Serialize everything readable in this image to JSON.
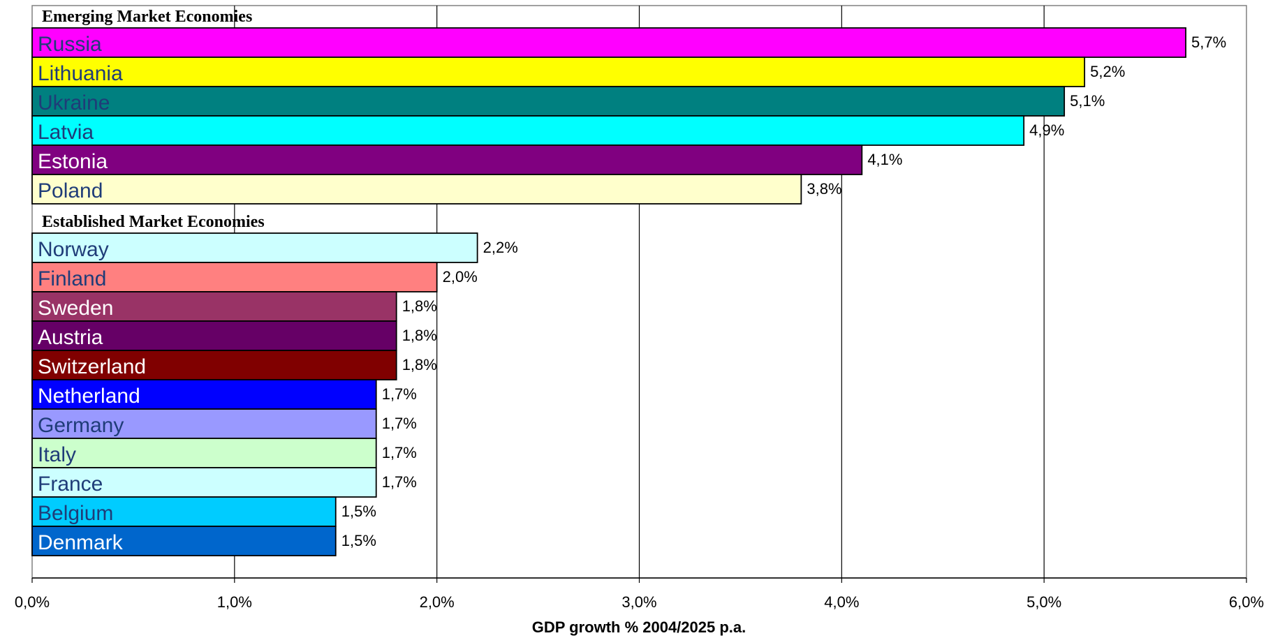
{
  "chart_data": {
    "type": "bar",
    "orientation": "horizontal",
    "xlabel": "GDP growth % 2004/2025 p.a.",
    "xlim": [
      0,
      6
    ],
    "xticks": [
      "0,0%",
      "1,0%",
      "2,0%",
      "3,0%",
      "4,0%",
      "5,0%",
      "6,0%"
    ],
    "grid": "vertical",
    "groups": [
      {
        "label": "Emerging Market Economies",
        "bars": [
          {
            "name": "Russia",
            "value": 5.7,
            "value_label": "5,7%",
            "color": "#ff00ff",
            "text_color": "#1f3c78"
          },
          {
            "name": "Lithuania",
            "value": 5.2,
            "value_label": "5,2%",
            "color": "#ffff00",
            "text_color": "#1f3c78"
          },
          {
            "name": "Ukraine",
            "value": 5.1,
            "value_label": "5,1%",
            "color": "#008080",
            "text_color": "#1f3c78"
          },
          {
            "name": "Latvia",
            "value": 4.9,
            "value_label": "4,9%",
            "color": "#00ffff",
            "text_color": "#1f3c78"
          },
          {
            "name": "Estonia",
            "value": 4.1,
            "value_label": "4,1%",
            "color": "#800080",
            "text_color": "#ffffff"
          },
          {
            "name": "Poland",
            "value": 3.8,
            "value_label": "3,8%",
            "color": "#ffffcc",
            "text_color": "#1f3c78"
          }
        ]
      },
      {
        "label": "Established Market Economies",
        "bars": [
          {
            "name": "Norway",
            "value": 2.2,
            "value_label": "2,2%",
            "color": "#ccffff",
            "text_color": "#1f3c78"
          },
          {
            "name": "Finland",
            "value": 2.0,
            "value_label": "2,0%",
            "color": "#ff8080",
            "text_color": "#1f3c78"
          },
          {
            "name": "Sweden",
            "value": 1.8,
            "value_label": "1,8%",
            "color": "#993366",
            "text_color": "#ffffff"
          },
          {
            "name": "Austria",
            "value": 1.8,
            "value_label": "1,8%",
            "color": "#660066",
            "text_color": "#ffffff"
          },
          {
            "name": "Switzerland",
            "value": 1.8,
            "value_label": "1,8%",
            "color": "#800000",
            "text_color": "#ffffff"
          },
          {
            "name": "Netherland",
            "value": 1.7,
            "value_label": "1,7%",
            "color": "#0000ff",
            "text_color": "#ffffff"
          },
          {
            "name": "Germany",
            "value": 1.7,
            "value_label": "1,7%",
            "color": "#9999ff",
            "text_color": "#1f3c78"
          },
          {
            "name": "Italy",
            "value": 1.7,
            "value_label": "1,7%",
            "color": "#ccffcc",
            "text_color": "#1f3c78"
          },
          {
            "name": "France",
            "value": 1.7,
            "value_label": "1,7%",
            "color": "#ccffff",
            "text_color": "#1f3c78"
          },
          {
            "name": "Belgium",
            "value": 1.5,
            "value_label": "1,5%",
            "color": "#00ccff",
            "text_color": "#1f3c78"
          },
          {
            "name": "Denmark",
            "value": 1.5,
            "value_label": "1,5%",
            "color": "#0066cc",
            "text_color": "#ffffff"
          }
        ]
      }
    ]
  }
}
